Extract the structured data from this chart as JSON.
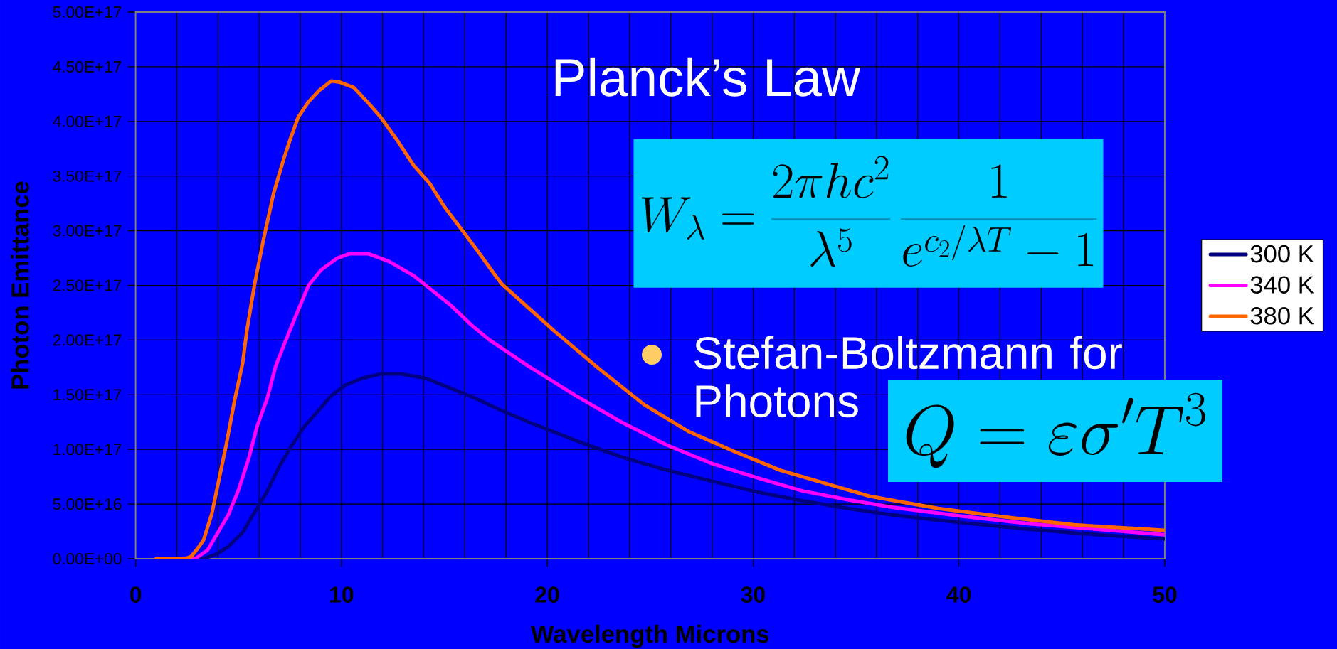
{
  "chart_data": {
    "type": "line",
    "title": "Planck’s Law",
    "xlabel": "Wavelength Microns",
    "ylabel": "Photon Emittance",
    "annotations": [
      "W_{\\lambda} = \\frac{2\\pi hc^{2}}{\\lambda^{5}}\\,\\frac{1}{e^{c_{2}/\\lambda T}-1}",
      "Stefan-Boltzmann for Photons",
      "Q = \\varepsilon\\sigma' T^{3}"
    ],
    "xlim": [
      0,
      50
    ],
    "ylim": [
      0,
      5e+17
    ],
    "xticks": [
      0,
      {
        "value": 2,
        "label": null
      },
      {
        "value": 4,
        "label": null
      },
      {
        "value": 6,
        "label": null
      },
      {
        "value": 8,
        "label": null
      },
      10,
      {
        "value": 12,
        "label": null
      },
      {
        "value": 14,
        "label": null
      },
      {
        "value": 16,
        "label": null
      },
      {
        "value": 18,
        "label": null
      },
      20,
      {
        "value": 22,
        "label": null
      },
      {
        "value": 24,
        "label": null
      },
      {
        "value": 26,
        "label": null
      },
      {
        "value": 28,
        "label": null
      },
      30,
      {
        "value": 32,
        "label": null
      },
      {
        "value": 34,
        "label": null
      },
      {
        "value": 36,
        "label": null
      },
      {
        "value": 38,
        "label": null
      },
      40,
      {
        "value": 42,
        "label": null
      },
      {
        "value": 44,
        "label": null
      },
      {
        "value": 46,
        "label": null
      },
      {
        "value": 48,
        "label": null
      },
      50
    ],
    "yticks": [
      {
        "value": 0,
        "label": "0.00E+00"
      },
      {
        "value": 5e+16,
        "label": "5.00E+16"
      },
      {
        "value": 1e+17,
        "label": "1.00E+17"
      },
      {
        "value": 1.5e+17,
        "label": "1.50E+17"
      },
      {
        "value": 2e+17,
        "label": "2.00E+17"
      },
      {
        "value": 2.5e+17,
        "label": "2.50E+17"
      },
      {
        "value": 3e+17,
        "label": "3.00E+17"
      },
      {
        "value": 3.5e+17,
        "label": "3.50E+17"
      },
      {
        "value": 4e+17,
        "label": "4.00E+17"
      },
      {
        "value": 4.5e+17,
        "label": "4.50E+17"
      },
      {
        "value": 5e+17,
        "label": "5.00E+17"
      }
    ],
    "grid": true,
    "legend": "right",
    "series": [
      {
        "name": "300 K",
        "color": "#000080",
        "x": [
          1,
          2,
          3.3,
          3.9,
          4.5,
          5.2,
          5.8,
          6.4,
          7.0,
          7.6,
          8.2,
          8.9,
          9.5,
          10.2,
          11.0,
          11.9,
          12.9,
          14.1,
          15.3,
          16.6,
          17.6,
          19.1,
          21.4,
          23.6,
          25.8,
          28.0,
          30.2,
          32.4,
          34.6,
          36.8,
          40.1,
          43.4,
          46.7,
          50
        ],
        "values": [
          0,
          0,
          0,
          4000000000000000.0,
          1.1e+16,
          2.4e+16,
          4.3e+16,
          6.2e+16,
          8.5e+16,
          1.04e+17,
          1.21e+17,
          1.36e+17,
          1.49e+17,
          1.59e+17,
          1.65e+17,
          1.69e+17,
          1.69e+17,
          1.65e+17,
          1.56e+17,
          1.46e+17,
          1.37e+17,
          1.25e+17,
          1.08e+17,
          9.3e+16,
          8.1e+16,
          7.1e+16,
          6.1e+16,
          5.3e+16,
          4.6e+16,
          4e+16,
          3.3e+16,
          2.7e+16,
          2.2e+16,
          1.8e+16
        ]
      },
      {
        "name": "340 K",
        "color": "#ff00ff",
        "x": [
          1,
          2,
          2.9,
          3.5,
          4.0,
          4.5,
          5.0,
          5.5,
          5.9,
          6.4,
          6.8,
          7.3,
          7.8,
          8.4,
          9.0,
          9.8,
          10.4,
          11.3,
          12.3,
          13.5,
          14.3,
          15.3,
          16.3,
          17.2,
          19.1,
          21.4,
          23.6,
          25.8,
          28.0,
          30.2,
          32.4,
          34.6,
          36.8,
          40.1,
          43.4,
          46.7,
          50
        ],
        "values": [
          0,
          0,
          0,
          8000000000000000.0,
          2.4e+16,
          4e+16,
          6.3e+16,
          9.2e+16,
          1.21e+17,
          1.47e+17,
          1.76e+17,
          2e+17,
          2.23e+17,
          2.5e+17,
          2.64e+17,
          2.75e+17,
          2.79e+17,
          2.79e+17,
          2.72e+17,
          2.59e+17,
          2.47e+17,
          2.32e+17,
          2.14e+17,
          2e+17,
          1.76e+17,
          1.49e+17,
          1.25e+17,
          1.04e+17,
          8.7e+16,
          7.4e+16,
          6.2e+16,
          5.4e+16,
          4.7e+16,
          3.9e+16,
          3.2e+16,
          2.7e+16,
          2.2e+16
        ]
      },
      {
        "name": "380 K",
        "color": "#ff6600",
        "x": [
          1,
          2,
          2.4,
          2.7,
          3.0,
          3.3,
          3.7,
          4.0,
          4.4,
          4.8,
          5.2,
          5.4,
          5.6,
          5.8,
          6.2,
          6.7,
          7.2,
          7.5,
          7.9,
          8.4,
          8.9,
          9.5,
          9.9,
          10.6,
          11.3,
          11.9,
          12.7,
          13.5,
          14.3,
          15.0,
          15.8,
          16.6,
          17.4,
          17.8,
          20.3,
          22.5,
          24.7,
          26.9,
          29.1,
          31.3,
          33.5,
          35.7,
          39.0,
          42.3,
          45.6,
          50
        ],
        "values": [
          0,
          0,
          0,
          2000000000000000.0,
          9000000000000000.0,
          1.7e+16,
          4.1e+16,
          6.8e+16,
          1.04e+17,
          1.44e+17,
          1.79e+17,
          2.08e+17,
          2.31e+17,
          2.53e+17,
          2.91e+17,
          3.34e+17,
          3.66e+17,
          3.83e+17,
          4.04e+17,
          4.18e+17,
          4.28e+17,
          4.37e+17,
          4.36e+17,
          4.31e+17,
          4.17e+17,
          4.04e+17,
          3.83e+17,
          3.6e+17,
          3.43e+17,
          3.22e+17,
          3.02e+17,
          2.82e+17,
          2.61e+17,
          2.51e+17,
          2.09e+17,
          1.74e+17,
          1.41e+17,
          1.16e+17,
          9.8e+16,
          8.1e+16,
          6.9e+16,
          5.7e+16,
          4.6e+16,
          3.8e+16,
          3.1e+16,
          2.6e+16
        ]
      }
    ]
  }
}
